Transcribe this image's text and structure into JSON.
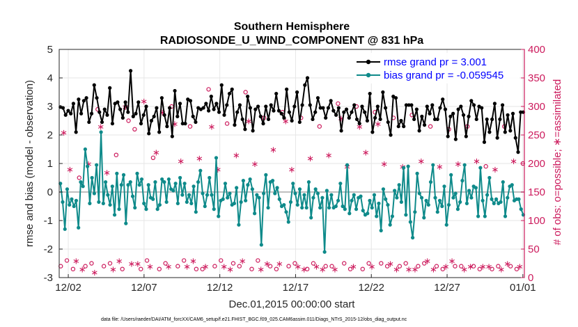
{
  "chart_data": {
    "type": "line",
    "title": "Southern Hemisphere",
    "subtitle": "RADIOSONDE_U_WIND_COMPONENT @ 831 hPa",
    "xlabel": "Dec.01,2015 00:00:00 start",
    "ylabel_left": "rmse and bias (model - observation)",
    "ylabel_right": "# of obs: o=possible; ∗=assimilated",
    "footer": "data file: /Users/raeder/DAI/ATM_forcXX/CAM6_setup/f.e21.FHIST_BGC.f09_025.CAM6assim.011/Diags_NTrS_2015-12/obs_diag_output.nc",
    "x_tick_values": [
      1.5,
      6.5,
      11.5,
      16.5,
      21.5,
      26.5,
      31.5
    ],
    "x_tick_labels": [
      "12/02",
      "12/07",
      "12/12",
      "12/17",
      "12/22",
      "12/27",
      "01/01"
    ],
    "xlim": [
      0.9,
      31.6
    ],
    "ylim_left": [
      -3,
      5
    ],
    "y_ticks_left": [
      "-3",
      "-2",
      "-1",
      "0",
      "1",
      "2",
      "3",
      "4",
      "5"
    ],
    "ylim_right": [
      0,
      400
    ],
    "y_ticks_right": [
      "0",
      "50",
      "100",
      "150",
      "200",
      "250",
      "300",
      "350",
      "400"
    ],
    "grid": true,
    "legend_position": "top-right",
    "colors": {
      "rmse": "#000000",
      "bias": "#0e8a8a",
      "obs": "#cc1a5c",
      "zero_line": "#bfbfbf",
      "right_axis": "#cc1a5c",
      "grid": "#e6e6e6",
      "legend_rmse_text": "#0000ff",
      "legend_bias_text": "#0000ff"
    },
    "series": [
      {
        "name": "rmse grand pr = 3.001",
        "axis": "left",
        "values": [
          2.98,
          2.95,
          2.7,
          2.85,
          2.75,
          3.1,
          2.1,
          3.25,
          2.75,
          3.2,
          3.3,
          2.45,
          2.75,
          3.75,
          3.3,
          2.8,
          2.45,
          2.9,
          2.7,
          3.65,
          2.4,
          3.1,
          3.15,
          2.9,
          2.6,
          3.15,
          2.8,
          4.25,
          2.65,
          2.75,
          3.15,
          2.4,
          2.7,
          3.0,
          2.05,
          2.5,
          2.65,
          2.95,
          2.1,
          3.3,
          2.7,
          2.3,
          2.95,
          1.95,
          3.55,
          2.65,
          3.1,
          2.4,
          2.4,
          3.25,
          3.2,
          2.65,
          2.45,
          2.95,
          2.9,
          2.95,
          3.1,
          2.85,
          3.35,
          2.9,
          3.1,
          2.8,
          3.75,
          2.7,
          3.05,
          3.45,
          3.6,
          2.35,
          2.8,
          3.05,
          2.55,
          2.2,
          3.35,
          2.95,
          2.15,
          2.9,
          3.0,
          2.65,
          2.4,
          3.0,
          2.55,
          3.05,
          2.85,
          3.45,
          2.85,
          2.75,
          2.6,
          3.6,
          2.8,
          2.5,
          3.0,
          3.5,
          2.45,
          3.05,
          3.75,
          4.0,
          3.05,
          2.55,
          2.8,
          3.3,
          2.95,
          2.95,
          2.6,
          2.95,
          3.2,
          2.85,
          2.7,
          2.95,
          2.15,
          2.8,
          2.9,
          2.6,
          2.8,
          3.05,
          2.55,
          2.4,
          3.0,
          2.8,
          2.5,
          3.45,
          2.1,
          2.6,
          3.0,
          2.55,
          3.5,
          2.95,
          2.45,
          2.0,
          3.35,
          3.3,
          2.3,
          2.5,
          2.3,
          3.05,
          3.05,
          3.05,
          2.55,
          2.9,
          2.15,
          2.65,
          2.35,
          3.0,
          2.75,
          3.05,
          2.55,
          2.55,
          2.95,
          3.25,
          2.9,
          1.95,
          2.65,
          2.75,
          1.85,
          2.9,
          3.0,
          2.7,
          1.95,
          2.65,
          3.2,
          3.05,
          2.55,
          3.0,
          2.95,
          1.75,
          2.55,
          2.1,
          2.55,
          3.1,
          1.9,
          2.55,
          3.05,
          2.1,
          2.7,
          2.15,
          2.75,
          1.9,
          1.4,
          2.8,
          2.8
        ]
      },
      {
        "name": "bias grand pr = -0.059545",
        "axis": "left",
        "values": [
          0.3,
          -0.35,
          -1.3,
          0.1,
          -0.45,
          -0.25,
          -0.5,
          -0.3,
          -1.25,
          0.35,
          0.2,
          1.5,
          0.9,
          -0.4,
          0.5,
          -0.05,
          0.95,
          -0.35,
          2.1,
          -0.4,
          0.35,
          -0.1,
          -0.45,
          0.2,
          -0.8,
          0.65,
          -0.6,
          0.25,
          0.6,
          -1.1,
          0.25,
          0.35,
          -0.15,
          -0.55,
          0.65,
          0.25,
          0.45,
          -0.4,
          -0.6,
          0.25,
          -0.2,
          -0.25,
          0.35,
          -0.6,
          -0.45,
          0.45,
          0.35,
          -0.35,
          0.45,
          0.1,
          0.05,
          0.3,
          -0.4,
          0.5,
          -0.1,
          0.3,
          -0.35,
          -0.1,
          -0.4,
          0.2,
          -0.7,
          0.35,
          0.75,
          -0.05,
          -0.5,
          -0.1,
          0.5,
          -0.1,
          -0.6,
          1.2,
          -0.85,
          -0.3,
          -0.25,
          0.3,
          -0.2,
          -0.05,
          -0.45,
          -0.4,
          0.15,
          -1.15,
          -0.35,
          0.4,
          -0.3,
          0.25,
          0.45,
          0.1,
          -0.75,
          -0.1,
          -0.2,
          -1.85,
          -0.05,
          0.6,
          -0.55,
          0.35,
          0.4,
          -0.05,
          0.15,
          -0.25,
          -0.5,
          -0.45,
          -0.7,
          -1.05,
          -0.35,
          0.3,
          -0.05,
          -0.45,
          0.1,
          -0.55,
          -0.1,
          -0.55,
          0.35,
          -0.9,
          -0.2,
          0.1,
          -0.05,
          -0.55,
          -0.2,
          -2.1,
          0.05,
          -0.55,
          -0.1,
          -0.55,
          -0.5,
          -0.3,
          0.3,
          -0.5,
          -0.6,
          0.95,
          -0.75,
          -0.3,
          -0.1,
          -0.6,
          -0.2,
          -0.15,
          -0.65,
          -0.8,
          -0.75,
          -0.3,
          -0.55,
          -0.1,
          -0.85,
          -0.4,
          -1.35,
          0.1,
          -0.25,
          -0.45,
          -1.15,
          -0.85,
          0.05,
          -0.2,
          0.25,
          -0.35,
          0.85,
          -0.8,
          0.9,
          -1.05,
          -1.6,
          -0.7,
          0.65,
          -0.05,
          -0.2,
          -0.9,
          -0.3,
          -0.45,
          0.35,
          0.95,
          -0.2,
          -0.7,
          -0.3,
          -0.5,
          0.2,
          -1.15,
          -0.45,
          0.6,
          -0.2,
          -0.05,
          -0.6,
          -0.35,
          0.4,
          0.95,
          -0.4,
          0.05,
          -0.2,
          0.2,
          0.15,
          -0.85,
          0.85,
          -0.3,
          -0.85,
          -0.1,
          0.5,
          -0.25,
          -0.4,
          -0.25,
          -0.4,
          -0.35,
          0.35,
          -0.85,
          -0.2,
          0.2,
          0.25,
          -0.3,
          -0.25,
          -0.25,
          -0.6,
          -0.8
        ]
      },
      {
        "name": "obs possible",
        "axis": "right",
        "marker": "o",
        "values": [
          20,
          255,
          30,
          190,
          15,
          30,
          175,
          15,
          20,
          200,
          25,
          10,
          295,
          265,
          20,
          185,
          25,
          15,
          215,
          30,
          15,
          300,
          275,
          25,
          260,
          25,
          15,
          310,
          30,
          20,
          210,
          220,
          15,
          290,
          25,
          20,
          300,
          270,
          20,
          205,
          30,
          20,
          265,
          30,
          15,
          210,
          15,
          20,
          330,
          265,
          20,
          190,
          30,
          20,
          270,
          15,
          25,
          215,
          20,
          30,
          325,
          275,
          15,
          200,
          30,
          15,
          280,
          25,
          20,
          225,
          15,
          25,
          290,
          275,
          20,
          190,
          25,
          20,
          280,
          15,
          15,
          210,
          25,
          20,
          265,
          15,
          20,
          215,
          20,
          15,
          305,
          280,
          25,
          195,
          15,
          20,
          300,
          265,
          15,
          220,
          25,
          20,
          290,
          270,
          25,
          200,
          20,
          25,
          280,
          15,
          20,
          195,
          25,
          15,
          285,
          15,
          20,
          205,
          25,
          30,
          265,
          15,
          20,
          195,
          15,
          20,
          260,
          30,
          20,
          200,
          20,
          15,
          265,
          20,
          20,
          205,
          15,
          20,
          195,
          20,
          15,
          190,
          20,
          15,
          265,
          25,
          20,
          205,
          15,
          20,
          200
        ]
      }
    ]
  }
}
